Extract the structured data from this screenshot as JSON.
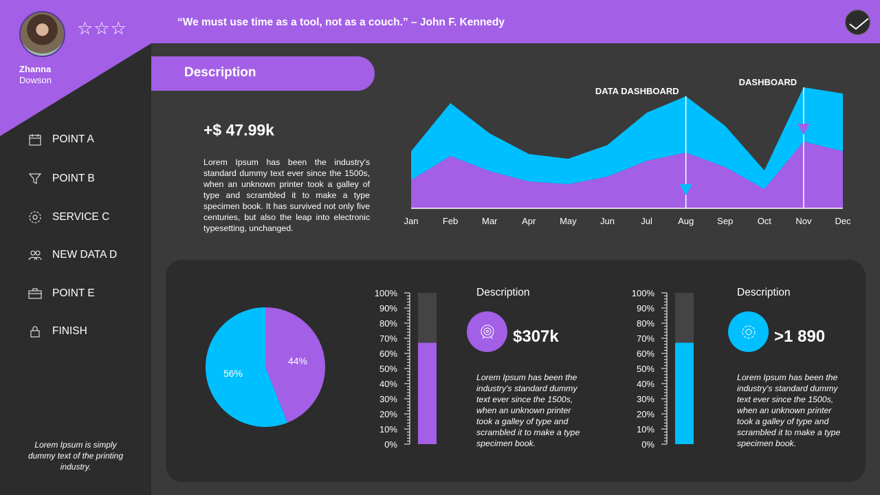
{
  "profile": {
    "first_name": "Zhanna",
    "last_name": "Dowson",
    "rating_stars": 3
  },
  "quote": "“We must use time as a tool, not as a couch.”  – John F. Kennedy",
  "sidebar": {
    "items": [
      {
        "label": "POINT A",
        "icon": "calendar-icon"
      },
      {
        "label": "POINT B",
        "icon": "funnel-icon"
      },
      {
        "label": "SERVICE C",
        "icon": "gear-icon"
      },
      {
        "label": "NEW DATA D",
        "icon": "users-icon"
      },
      {
        "label": "POINT E",
        "icon": "briefcase-icon"
      },
      {
        "label": "FINISH",
        "icon": "lock-icon"
      }
    ],
    "footer": "Lorem Ipsum is simply dummy text of the printing industry."
  },
  "description": {
    "title": "Description",
    "value": "+$ 47.99k",
    "text": "Lorem Ipsum has been the industry's standard dummy text ever since the 1500s, when an unknown printer took a galley of type and scrambled it to make a type specimen book. It has survived not only five centuries, but also the leap into electronic typesetting, unchanged."
  },
  "colors": {
    "purple": "#a35fe6",
    "cyan": "#00bfff",
    "dark": "#2c2c2c"
  },
  "cards": [
    {
      "title": "Description",
      "value": "$307k",
      "icon": "target-icon",
      "color": "#a35fe6",
      "text": "Lorem Ipsum has been the industry's standard dummy text ever since the 1500s, when an unknown printer took a galley of type and scrambled it to make a type specimen book."
    },
    {
      "title": "Description",
      "value": ">1 890",
      "icon": "gear-icon",
      "color": "#00bfff",
      "text": "Lorem Ipsum has been the industry's standard dummy text ever since the 1500s, when an unknown printer took a galley of type and scrambled it to make a type specimen book."
    }
  ],
  "chart_data": [
    {
      "type": "area",
      "stacked": true,
      "categories": [
        "Jan",
        "Feb",
        "Mar",
        "Apr",
        "May",
        "Jun",
        "Jul",
        "Aug",
        "Sep",
        "Oct",
        "Nov",
        "Dec"
      ],
      "series": [
        {
          "color": "#a35fe6",
          "values": [
            41,
            76,
            54,
            39,
            35,
            46,
            69,
            81,
            60,
            28,
            97,
            83
          ]
        },
        {
          "color": "#00bfff",
          "values": [
            42,
            77,
            55,
            40,
            37,
            46,
            70,
            82,
            60,
            27,
            79,
            84
          ]
        }
      ],
      "ylim": [
        0,
        180
      ],
      "grid": false,
      "annotations": [
        {
          "label": "DATA DASHBOARD",
          "x": "Aug",
          "marker_color": "#00bfff"
        },
        {
          "label": "DASHBOARD",
          "x": "Nov",
          "marker_color": "#a35fe6"
        }
      ]
    },
    {
      "type": "pie",
      "values": [
        44,
        56
      ],
      "labels": [
        "44%",
        "56%"
      ],
      "colors": [
        "#a35fe6",
        "#00bfff"
      ]
    },
    {
      "type": "bar",
      "value": 67,
      "ylim": [
        0,
        100
      ],
      "ticks": [
        "0%",
        "10%",
        "20%",
        "30%",
        "40%",
        "50%",
        "60%",
        "70%",
        "80%",
        "90%",
        "100%"
      ],
      "color": "#a35fe6"
    },
    {
      "type": "bar",
      "value": 67,
      "ylim": [
        0,
        100
      ],
      "ticks": [
        "0%",
        "10%",
        "20%",
        "30%",
        "40%",
        "50%",
        "60%",
        "70%",
        "80%",
        "90%",
        "100%"
      ],
      "color": "#00bfff"
    }
  ]
}
